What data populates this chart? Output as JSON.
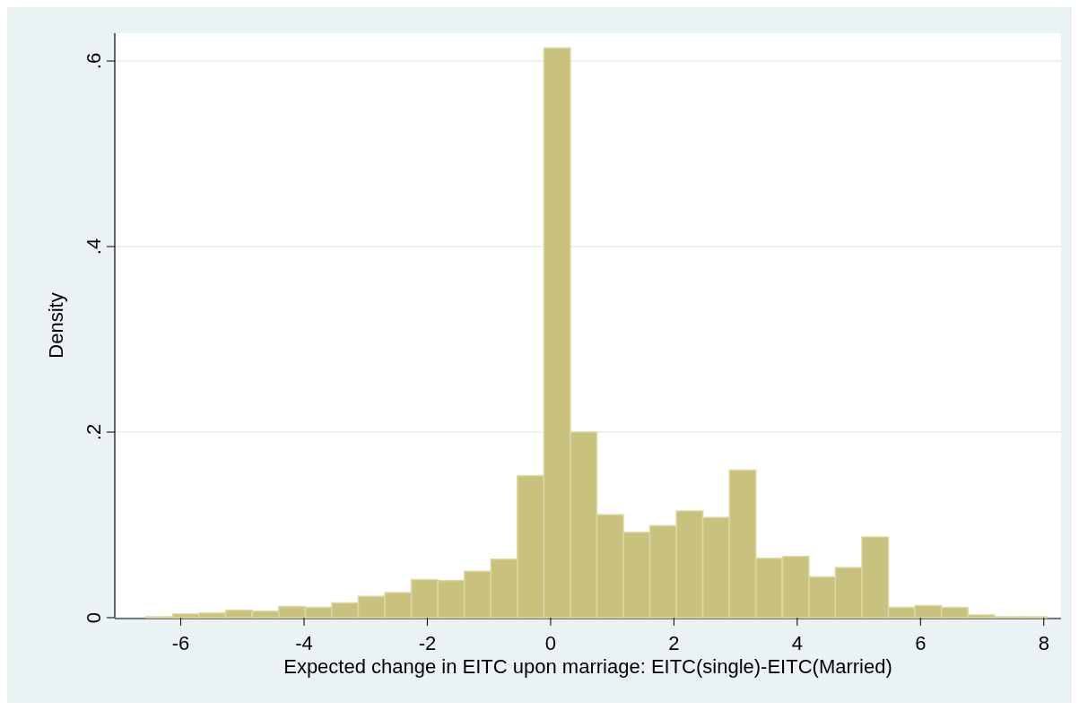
{
  "chart_data": {
    "type": "histogram",
    "xlabel": "Expected change in EITC upon marriage: EITC(single)-EITC(Married)",
    "ylabel": "Density",
    "bins": [
      -6.56,
      -6.13,
      -5.7,
      -5.27,
      -4.84,
      -4.41,
      -3.98,
      -3.55,
      -3.12,
      -2.69,
      -2.26,
      -1.83,
      -1.4,
      -0.97,
      -0.54,
      -0.11,
      0.32,
      0.75,
      1.18,
      1.61,
      2.04,
      2.47,
      2.9,
      3.33,
      3.76,
      4.19,
      4.62,
      5.05,
      5.48,
      5.91,
      6.34,
      6.77,
      7.2,
      7.63,
      8.06
    ],
    "values": [
      0.001,
      0.004,
      0.005,
      0.008,
      0.007,
      0.012,
      0.011,
      0.016,
      0.023,
      0.027,
      0.041,
      0.04,
      0.05,
      0.063,
      0.153,
      0.614,
      0.2,
      0.111,
      0.092,
      0.099,
      0.115,
      0.108,
      0.159,
      0.064,
      0.066,
      0.044,
      0.054,
      0.087,
      0.011,
      0.013,
      0.011,
      0.003,
      0.001,
      0.001
    ],
    "color": "#c9c27f",
    "xlim": [
      -7.07,
      8.28
    ],
    "xticks": [
      -6,
      -4,
      -2,
      0,
      2,
      4,
      6,
      8
    ],
    "ylim": [
      0,
      0.63
    ],
    "yticks": [
      {
        "value": 0,
        "label": "0"
      },
      {
        "value": 0.2,
        "label": ".2"
      },
      {
        "value": 0.4,
        "label": ".4"
      },
      {
        "value": 0.6,
        "label": ".6"
      }
    ],
    "grid": "y"
  }
}
